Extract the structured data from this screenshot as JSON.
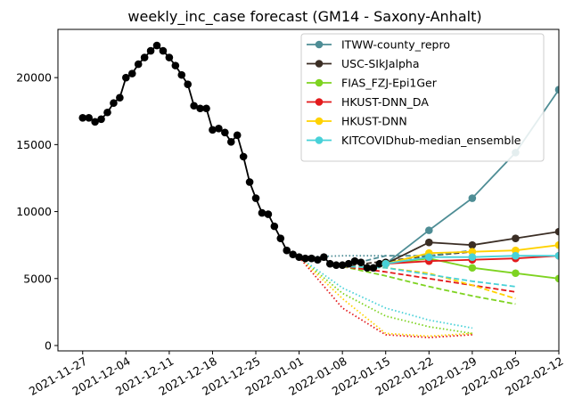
{
  "chart_data": {
    "type": "line",
    "title": "weekly_inc_case forecast (GM14 - Saxony-Anhalt)",
    "xlabel": "",
    "ylabel": "",
    "x_range": [
      "2021-11-23",
      "2022-02-12"
    ],
    "ylim": [
      -400,
      23600
    ],
    "x_ticks": [
      "2021-11-27",
      "2021-12-04",
      "2021-12-11",
      "2021-12-18",
      "2021-12-25",
      "2022-01-01",
      "2022-01-08",
      "2022-01-15",
      "2022-01-22",
      "2022-01-29",
      "2022-02-05",
      "2022-02-12"
    ],
    "y_ticks": [
      0,
      5000,
      10000,
      15000,
      20000
    ],
    "legend_position": "top-right",
    "observed": {
      "color": "#000000",
      "x": [
        "2021-11-27",
        "2021-11-28",
        "2021-11-29",
        "2021-11-30",
        "2021-12-01",
        "2021-12-02",
        "2021-12-03",
        "2021-12-04",
        "2021-12-05",
        "2021-12-06",
        "2021-12-07",
        "2021-12-08",
        "2021-12-09",
        "2021-12-10",
        "2021-12-11",
        "2021-12-12",
        "2021-12-13",
        "2021-12-14",
        "2021-12-15",
        "2021-12-16",
        "2021-12-17",
        "2021-12-18",
        "2021-12-19",
        "2021-12-20",
        "2021-12-21",
        "2021-12-22",
        "2021-12-23",
        "2021-12-24",
        "2021-12-25",
        "2021-12-26",
        "2021-12-27",
        "2021-12-28",
        "2021-12-29",
        "2021-12-30",
        "2021-12-31",
        "2022-01-01",
        "2022-01-02",
        "2022-01-03",
        "2022-01-04",
        "2022-01-05",
        "2022-01-06",
        "2022-01-07",
        "2022-01-08",
        "2022-01-09",
        "2022-01-10",
        "2022-01-11",
        "2022-01-12",
        "2022-01-13",
        "2022-01-14",
        "2022-01-15"
      ],
      "y": [
        17000,
        17000,
        16700,
        16900,
        17400,
        18100,
        18500,
        20000,
        20300,
        21000,
        21500,
        22000,
        22400,
        22000,
        21500,
        20900,
        20200,
        19500,
        17900,
        17700,
        17700,
        16100,
        16200,
        15900,
        15200,
        15700,
        14100,
        12200,
        11000,
        9900,
        9800,
        8900,
        8000,
        7100,
        6800,
        6600,
        6500,
        6500,
        6400,
        6600,
        6100,
        6000,
        6000,
        6100,
        6300,
        6200,
        5800,
        5800,
        6100,
        6200
      ]
    },
    "series": [
      {
        "name": "ITWW-county_repro",
        "color": "#4e8d95",
        "x": [
          "2022-01-15",
          "2022-01-22",
          "2022-01-29",
          "2022-02-05",
          "2022-02-12"
        ],
        "y": [
          6100,
          8600,
          11000,
          14400,
          19100
        ]
      },
      {
        "name": "USC-SIkJalpha",
        "color": "#3b2e25",
        "x": [
          "2022-01-15",
          "2022-01-22",
          "2022-01-29",
          "2022-02-05",
          "2022-02-12"
        ],
        "y": [
          6100,
          7700,
          7500,
          8000,
          8500
        ]
      },
      {
        "name": "FIAS_FZJ-Epi1Ger",
        "color": "#7ed321",
        "x": [
          "2022-01-15",
          "2022-01-22",
          "2022-01-29",
          "2022-02-05",
          "2022-02-12"
        ],
        "y": [
          6100,
          6500,
          5800,
          5400,
          5000
        ]
      },
      {
        "name": "HKUST-DNN_DA",
        "color": "#e31a1c",
        "x": [
          "2022-01-15",
          "2022-01-22",
          "2022-01-29",
          "2022-02-05",
          "2022-02-12"
        ],
        "y": [
          6100,
          6300,
          6400,
          6500,
          6700
        ]
      },
      {
        "name": "HKUST-DNN",
        "color": "#ffd200",
        "x": [
          "2022-01-15",
          "2022-01-22",
          "2022-01-29",
          "2022-02-05",
          "2022-02-12"
        ],
        "y": [
          6100,
          6900,
          7000,
          7100,
          7500
        ]
      },
      {
        "name": "KITCOVIDhub-median_ensemble",
        "color": "#48d1d8",
        "x": [
          "2022-01-15",
          "2022-01-22",
          "2022-01-29",
          "2022-02-05",
          "2022-02-12"
        ],
        "y": [
          6100,
          6600,
          6600,
          6700,
          6700
        ]
      }
    ],
    "past_forecasts": [
      {
        "style": "dashed",
        "color": "#7ed321",
        "x": [
          "2022-01-08",
          "2022-01-15",
          "2022-01-22",
          "2022-01-29",
          "2022-02-05"
        ],
        "y": [
          5900,
          5200,
          4400,
          3700,
          3100
        ]
      },
      {
        "style": "dashed",
        "color": "#e31a1c",
        "x": [
          "2022-01-08",
          "2022-01-15",
          "2022-01-22",
          "2022-01-29",
          "2022-02-05"
        ],
        "y": [
          5900,
          5500,
          5000,
          4500,
          4000
        ]
      },
      {
        "style": "dashed",
        "color": "#ffd200",
        "x": [
          "2022-01-08",
          "2022-01-15",
          "2022-01-22",
          "2022-01-29",
          "2022-02-05"
        ],
        "y": [
          5900,
          5800,
          5400,
          4500,
          3500
        ]
      },
      {
        "style": "dashed",
        "color": "#48d1d8",
        "x": [
          "2022-01-08",
          "2022-01-15",
          "2022-01-22",
          "2022-01-29",
          "2022-02-05"
        ],
        "y": [
          5900,
          5800,
          5300,
          4800,
          4400
        ]
      },
      {
        "style": "dashed",
        "color": "#3b2e25",
        "x": [
          "2022-01-08",
          "2022-01-15",
          "2022-01-22",
          "2022-01-29"
        ],
        "y": [
          5900,
          6300,
          6700,
          7000
        ]
      },
      {
        "style": "dashed",
        "color": "#4e8d95",
        "x": [
          "2022-01-08",
          "2022-01-15",
          "2022-01-22",
          "2022-01-29"
        ],
        "y": [
          5900,
          6700,
          6700,
          7100
        ]
      },
      {
        "style": "dotted",
        "color": "#4e8d95",
        "x": [
          "2022-01-01",
          "2022-01-08",
          "2022-01-15"
        ],
        "y": [
          6600,
          6700,
          6700
        ]
      },
      {
        "style": "dotted",
        "color": "#7ed321",
        "x": [
          "2022-01-01",
          "2022-01-08",
          "2022-01-15",
          "2022-01-22",
          "2022-01-29"
        ],
        "y": [
          6600,
          3900,
          2200,
          1400,
          900
        ]
      },
      {
        "style": "dotted",
        "color": "#ffd200",
        "x": [
          "2022-01-01",
          "2022-01-08",
          "2022-01-15",
          "2022-01-22",
          "2022-01-29"
        ],
        "y": [
          6600,
          3500,
          900,
          700,
          900
        ]
      },
      {
        "style": "dotted",
        "color": "#e31a1c",
        "x": [
          "2022-01-01",
          "2022-01-08",
          "2022-01-15",
          "2022-01-22",
          "2022-01-29"
        ],
        "y": [
          6600,
          2800,
          800,
          600,
          800
        ]
      },
      {
        "style": "dotted",
        "color": "#48d1d8",
        "x": [
          "2022-01-01",
          "2022-01-08",
          "2022-01-15",
          "2022-01-22",
          "2022-01-29"
        ],
        "y": [
          6600,
          4300,
          2800,
          1900,
          1300
        ]
      }
    ]
  }
}
